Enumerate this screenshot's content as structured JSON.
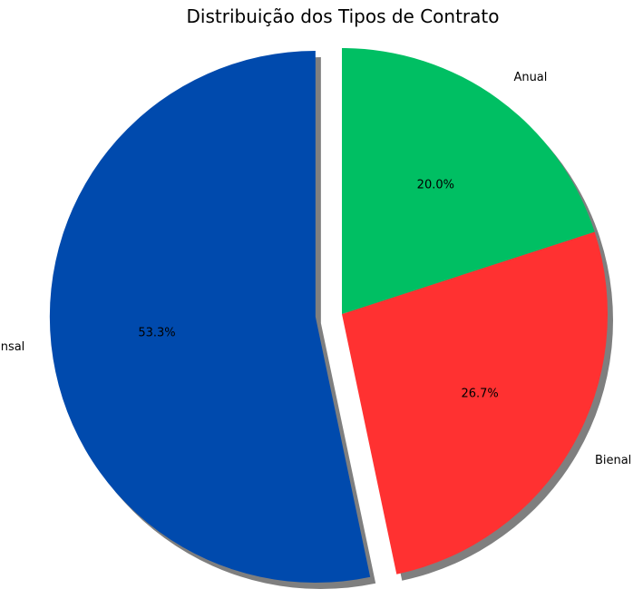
{
  "chart_data": {
    "type": "pie",
    "title": "Distribuição dos Tipos de Contrato",
    "categories": [
      "Mensal",
      "Bienal",
      "Anual"
    ],
    "values": [
      53.3,
      26.7,
      20.0
    ],
    "percent_labels": [
      "53.3%",
      "26.7%",
      "20.0%"
    ],
    "colors": [
      "#004aad",
      "#ff3131",
      "#00bf63"
    ],
    "explode": [
      0.1,
      0,
      0
    ],
    "shadow": true,
    "start_angle": 90,
    "direction": "counterclockwise"
  }
}
